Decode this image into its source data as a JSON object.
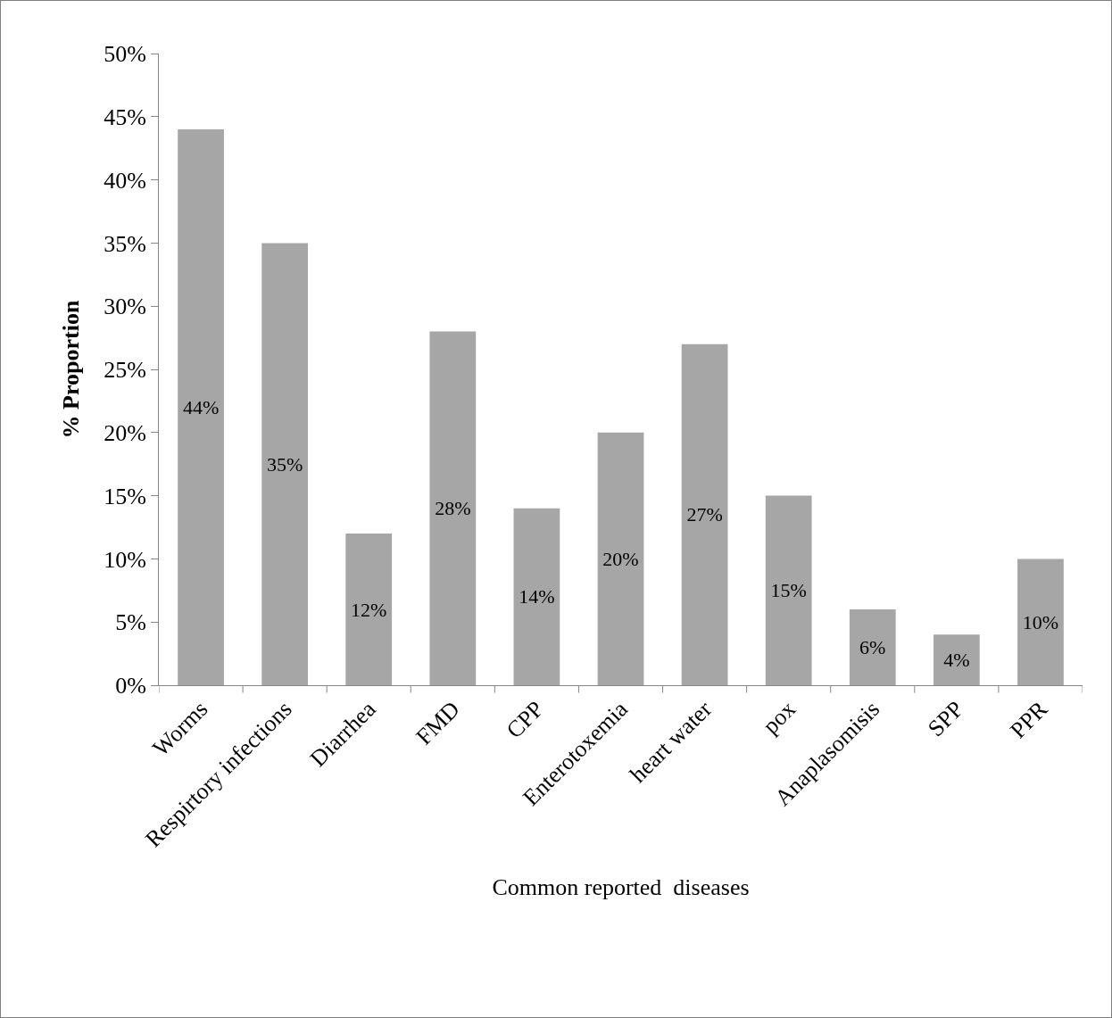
{
  "chart_data": {
    "type": "bar",
    "xlabel": "Common reported  diseases",
    "ylabel": "% Proportion",
    "categories": [
      "Worms",
      "Respirtory infections",
      "Diarrhea",
      "FMD",
      "CPP",
      "Enterotoxemia",
      "heart water",
      "pox",
      "Anaplasomisis",
      "SPP",
      "PPR"
    ],
    "values": [
      44,
      35,
      12,
      28,
      14,
      20,
      27,
      15,
      6,
      4,
      10
    ],
    "value_labels": [
      "44%",
      "35%",
      "12%",
      "28%",
      "14%",
      "20%",
      "27%",
      "15%",
      "6%",
      "4%",
      "10%"
    ],
    "color": "#a6a6a6",
    "ylim": [
      0,
      50
    ],
    "yticks": [
      {
        "value": 0,
        "label": "0%"
      },
      {
        "value": 5,
        "label": "5%"
      },
      {
        "value": 10,
        "label": "10%"
      },
      {
        "value": 15,
        "label": "15%"
      },
      {
        "value": 20,
        "label": "20%"
      },
      {
        "value": 25,
        "label": "25%"
      },
      {
        "value": 30,
        "label": "30%"
      },
      {
        "value": 35,
        "label": "35%"
      },
      {
        "value": 40,
        "label": "40%"
      },
      {
        "value": 45,
        "label": "45%"
      },
      {
        "value": 50,
        "label": "50%"
      }
    ],
    "grid": false
  }
}
